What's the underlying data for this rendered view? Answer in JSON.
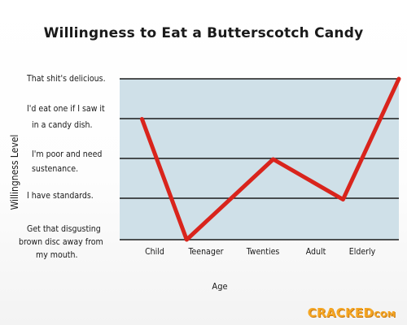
{
  "chart_data": {
    "type": "line",
    "title": "Willingness to Eat a Butterscotch Candy",
    "xlabel": "Age",
    "ylabel": "Willingness Level",
    "categories": [
      "Child",
      "Teenager",
      "Twenties",
      "Adult",
      "Elderly"
    ],
    "x_positions": [
      0.08,
      0.24,
      0.55,
      0.8,
      1.0
    ],
    "y_levels": [
      "Get that disgusting brown disc away from my mouth.",
      "I have standards.",
      "I'm poor and need sustenance.",
      "I'd eat one if I saw it in a candy dish.",
      "That shit's delicious."
    ],
    "series": [
      {
        "values": [
          3.0,
          0.0,
          2.0,
          1.0,
          4.0
        ]
      }
    ],
    "ylim": [
      0,
      4
    ],
    "grid": true,
    "line_color": "#d9241c",
    "plot_background": "#cfe0e8"
  },
  "watermark": {
    "main": "CRACKED",
    "suffix": "COM"
  }
}
